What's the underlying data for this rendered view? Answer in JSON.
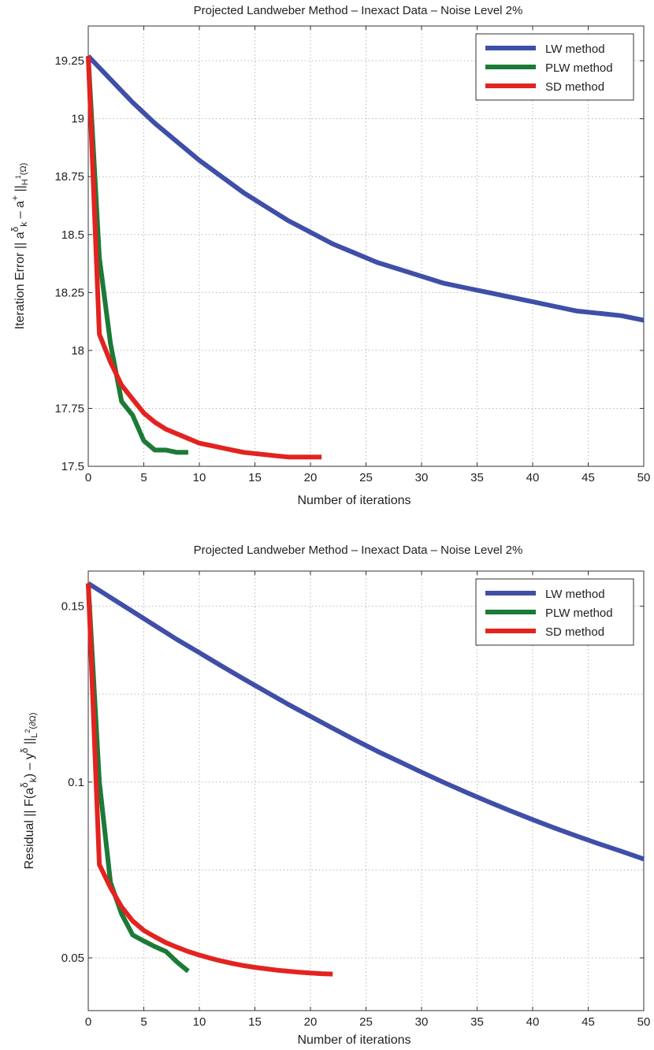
{
  "chart_data": [
    {
      "type": "line",
      "title": "Projected Landweber Method – Inexact Data – Noise Level 2%",
      "xlabel": "Number of iterations",
      "ylabel": {
        "prefix": "Iteration Error   || a",
        "sup1": "δ",
        "sub1": "k",
        "mid": " – a",
        "sup2": "+",
        "mid2": " ||",
        "sub2": "H",
        "sup3": "1",
        "sub3": "(Ω)"
      },
      "xlim": [
        0,
        50
      ],
      "ylim": [
        17.5,
        19.4
      ],
      "x_ticks": [
        0,
        5,
        10,
        15,
        20,
        25,
        30,
        35,
        40,
        45,
        50
      ],
      "y_ticks": [
        17.5,
        17.75,
        18,
        18.25,
        18.5,
        18.75,
        19,
        19.25
      ],
      "y_tick_labels": [
        "17.5",
        "17.75",
        "18",
        "18.25",
        "18.5",
        "18.75",
        "19",
        "19.25"
      ],
      "grid": true,
      "legend_position": "top-right",
      "series": [
        {
          "name": "LW method",
          "color": "#3f4fa8",
          "x": [
            0,
            2,
            4,
            6,
            8,
            10,
            12,
            14,
            16,
            18,
            20,
            22,
            24,
            26,
            28,
            30,
            32,
            34,
            36,
            38,
            40,
            42,
            44,
            46,
            48,
            50
          ],
          "y": [
            19.27,
            19.17,
            19.07,
            18.98,
            18.9,
            18.82,
            18.75,
            18.68,
            18.62,
            18.56,
            18.51,
            18.46,
            18.42,
            18.38,
            18.35,
            18.32,
            18.29,
            18.27,
            18.25,
            18.23,
            18.21,
            18.19,
            18.17,
            18.16,
            18.15,
            18.13
          ]
        },
        {
          "name": "PLW method",
          "color": "#1c7a37",
          "x": [
            0,
            1,
            2,
            3,
            4,
            5,
            6,
            7,
            8,
            9
          ],
          "y": [
            19.27,
            18.4,
            18.03,
            17.78,
            17.72,
            17.61,
            17.57,
            17.57,
            17.56,
            17.56
          ]
        },
        {
          "name": "SD method",
          "color": "#e3231f",
          "x": [
            0,
            1,
            2,
            3,
            4,
            5,
            6,
            7,
            8,
            9,
            10,
            11,
            12,
            13,
            14,
            15,
            16,
            17,
            18,
            19,
            20,
            21
          ],
          "y": [
            19.27,
            18.07,
            17.95,
            17.85,
            17.79,
            17.73,
            17.69,
            17.66,
            17.64,
            17.62,
            17.6,
            17.59,
            17.58,
            17.57,
            17.56,
            17.555,
            17.55,
            17.545,
            17.54,
            17.54,
            17.54,
            17.54
          ]
        }
      ]
    },
    {
      "type": "line",
      "title": "Projected Landweber Method – Inexact Data – Noise Level 2%",
      "xlabel": "Number of iterations",
      "ylabel": {
        "prefix": "Residual   || F(a",
        "sup1": "δ",
        "sub1": "k",
        "mid": ") – y",
        "sup2": "δ",
        "mid2": " ||",
        "sub2": "L",
        "sup3": "2",
        "sub3": "(∂Ω)"
      },
      "xlim": [
        0,
        50
      ],
      "ylim": [
        0.035,
        0.16
      ],
      "x_ticks": [
        0,
        5,
        10,
        15,
        20,
        25,
        30,
        35,
        40,
        45,
        50
      ],
      "y_ticks": [
        0.05,
        0.1,
        0.15
      ],
      "y_tick_labels": [
        "0.05",
        "0.1",
        "0.15"
      ],
      "y_minor_grid": [
        0.075,
        0.125
      ],
      "grid": true,
      "legend_position": "top-right",
      "series": [
        {
          "name": "LW method",
          "color": "#3f4fa8",
          "x": [
            0,
            2,
            4,
            6,
            8,
            10,
            12,
            14,
            16,
            18,
            20,
            22,
            24,
            26,
            28,
            30,
            32,
            34,
            36,
            38,
            40,
            42,
            44,
            46,
            48,
            50
          ],
          "y": [
            0.1565,
            0.1525,
            0.1485,
            0.1445,
            0.1405,
            0.1368,
            0.133,
            0.1293,
            0.1257,
            0.1221,
            0.1187,
            0.1153,
            0.112,
            0.1088,
            0.1058,
            0.1028,
            0.0999,
            0.0971,
            0.0944,
            0.0918,
            0.0893,
            0.0869,
            0.0846,
            0.0824,
            0.0803,
            0.0781
          ]
        },
        {
          "name": "PLW method",
          "color": "#1c7a37",
          "x": [
            0,
            1,
            2,
            3,
            4,
            5,
            6,
            7,
            8,
            9
          ],
          "y": [
            0.1565,
            0.1,
            0.0715,
            0.0625,
            0.0565,
            0.0548,
            0.0532,
            0.0518,
            0.0488,
            0.0462
          ]
        },
        {
          "name": "SD method",
          "color": "#e3231f",
          "x": [
            0,
            1,
            2,
            3,
            4,
            5,
            6,
            7,
            8,
            9,
            10,
            11,
            12,
            13,
            14,
            15,
            16,
            17,
            18,
            19,
            20,
            21,
            22
          ],
          "y": [
            0.1565,
            0.0765,
            0.07,
            0.0645,
            0.0605,
            0.0578,
            0.056,
            0.0543,
            0.053,
            0.0518,
            0.0508,
            0.0499,
            0.0491,
            0.0484,
            0.0478,
            0.0473,
            0.0469,
            0.0465,
            0.0462,
            0.0459,
            0.0457,
            0.0455,
            0.0454
          ]
        }
      ]
    }
  ]
}
